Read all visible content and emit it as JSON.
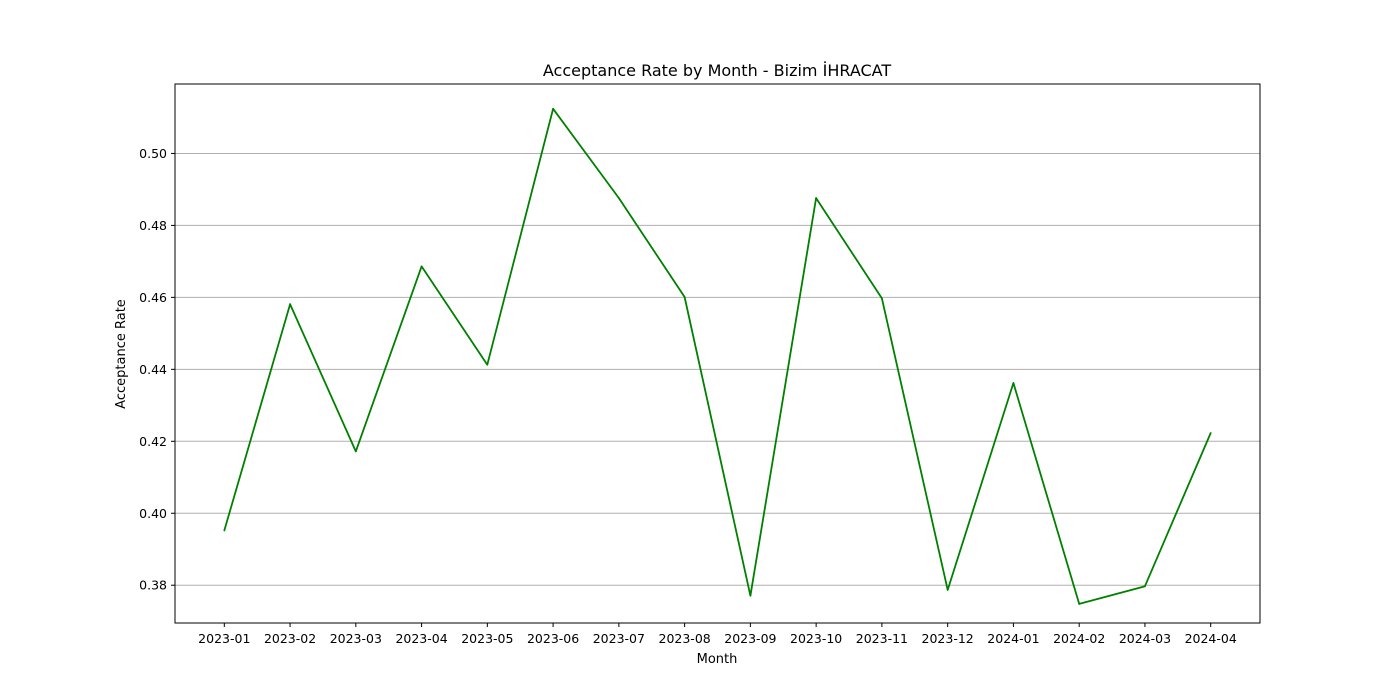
{
  "chart_data": {
    "type": "line",
    "title": "Acceptance Rate by Month - Bizim İHRACAT",
    "xlabel": "Month",
    "ylabel": "Acceptance Rate",
    "categories": [
      "2023-01",
      "2023-02",
      "2023-03",
      "2023-04",
      "2023-05",
      "2023-06",
      "2023-07",
      "2023-08",
      "2023-09",
      "2023-10",
      "2023-11",
      "2023-12",
      "2024-01",
      "2024-02",
      "2024-03",
      "2024-04"
    ],
    "series": [
      {
        "color": "#008000",
        "values": [
          0.3952,
          0.4581,
          0.4172,
          0.4686,
          0.4413,
          0.5124,
          0.4876,
          0.4601,
          0.3771,
          0.4876,
          0.4597,
          0.3787,
          0.4362,
          0.3748,
          0.3797,
          0.4223
        ]
      }
    ],
    "ylim": [
      0.3695,
      0.5193
    ],
    "yticks": [
      0.38,
      0.4,
      0.42,
      0.44,
      0.46,
      0.48,
      0.5
    ],
    "ytick_labels": [
      "0.38",
      "0.40",
      "0.42",
      "0.44",
      "0.46",
      "0.48",
      "0.50"
    ],
    "grid": "y-axis only",
    "grid_color": "#b0b0b0"
  }
}
